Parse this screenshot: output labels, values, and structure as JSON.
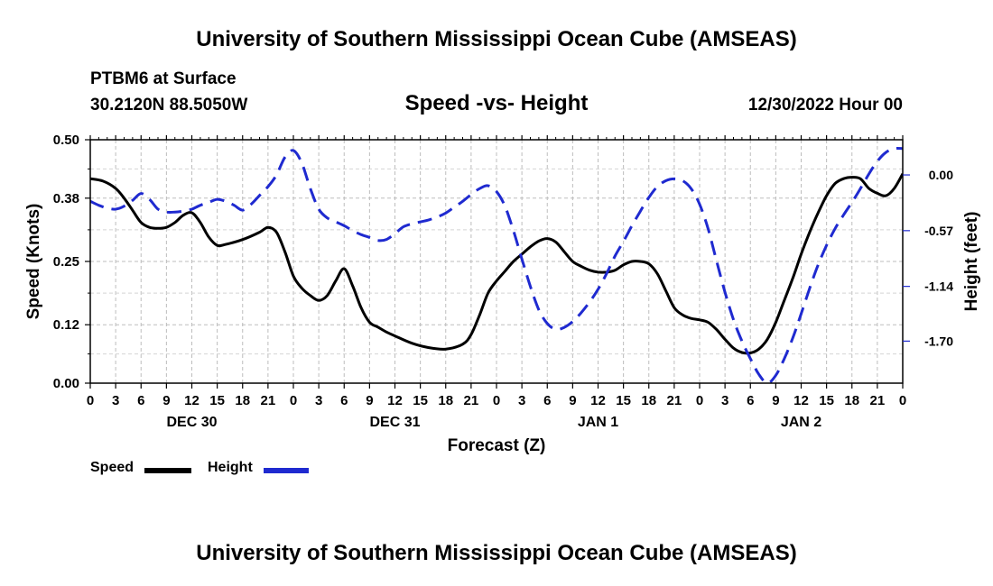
{
  "header": {
    "title": "University of Southern Mississippi Ocean Cube (AMSEAS)",
    "station": "PTBM6 at Surface",
    "coordinates": "30.2120N  88.5050W",
    "subtitle": "Speed -vs- Height",
    "datestamp": "12/30/2022 Hour 00"
  },
  "footer": {
    "title": "University of Southern Mississippi Ocean Cube (AMSEAS)"
  },
  "legend": {
    "speed_label": "Speed",
    "height_label": "Height",
    "speed_color": "#000000",
    "height_color": "#1f2ad0"
  },
  "chart_data": {
    "type": "line",
    "title": "Speed -vs- Height",
    "xlabel": "Forecast (Z)",
    "ylabel_left": "Speed (Knots)",
    "ylabel_right": "Height (feet)",
    "x_range_hours": [
      0,
      96
    ],
    "x_tick_labels": [
      "0",
      "3",
      "6",
      "9",
      "12",
      "15",
      "18",
      "21",
      "0",
      "3",
      "6",
      "9",
      "12",
      "15",
      "18",
      "21",
      "0",
      "3",
      "6",
      "9",
      "12",
      "15",
      "18",
      "21",
      "0",
      "3",
      "6",
      "9",
      "12",
      "15",
      "18",
      "21",
      "0"
    ],
    "day_labels": [
      {
        "label": "DEC 30",
        "hour": 12
      },
      {
        "label": "DEC 31",
        "hour": 36
      },
      {
        "label": "JAN 1",
        "hour": 60
      },
      {
        "label": "JAN 2",
        "hour": 84
      }
    ],
    "ylim_left": [
      0,
      0.5
    ],
    "y_ticks_left": [
      0.0,
      0.12,
      0.25,
      0.38,
      0.5
    ],
    "y_tick_labels_left": [
      "0.00",
      "0.12",
      "0.25",
      "0.38",
      "0.50"
    ],
    "ylim_right": [
      -2.13,
      0.36
    ],
    "y_ticks_right": [
      0.0,
      -0.57,
      -1.14,
      -1.7
    ],
    "y_tick_labels_right": [
      "0.00",
      "-0.57",
      "-1.14",
      "-1.70"
    ],
    "grid": true,
    "series": [
      {
        "name": "Speed",
        "axis": "left",
        "color": "#000000",
        "style": "solid",
        "x": [
          0,
          1.5,
          3,
          4,
          5,
          6,
          7,
          8,
          9,
          10,
          11,
          12,
          13,
          14,
          15,
          16,
          18,
          20,
          21,
          22,
          23,
          24,
          25,
          26,
          27,
          28,
          29,
          30,
          31,
          32,
          33,
          34,
          35,
          36,
          38,
          40,
          42,
          44,
          45,
          46,
          47,
          48,
          49,
          50,
          51,
          52,
          53,
          54,
          55,
          56,
          57,
          58,
          59,
          60,
          61,
          62,
          63,
          64,
          65,
          66,
          67,
          68,
          69,
          70,
          71,
          72,
          73,
          74,
          75,
          76,
          77,
          78,
          79,
          80,
          81,
          82,
          83,
          84,
          85,
          86,
          87,
          88,
          89,
          90,
          91,
          92,
          93,
          94,
          95,
          96
        ],
        "values": [
          0.42,
          0.415,
          0.4,
          0.38,
          0.355,
          0.33,
          0.32,
          0.318,
          0.32,
          0.33,
          0.345,
          0.35,
          0.33,
          0.3,
          0.283,
          0.285,
          0.295,
          0.31,
          0.32,
          0.31,
          0.27,
          0.22,
          0.195,
          0.18,
          0.17,
          0.18,
          0.21,
          0.235,
          0.2,
          0.155,
          0.125,
          0.115,
          0.105,
          0.097,
          0.082,
          0.073,
          0.07,
          0.08,
          0.1,
          0.14,
          0.185,
          0.21,
          0.23,
          0.25,
          0.265,
          0.28,
          0.292,
          0.297,
          0.29,
          0.27,
          0.25,
          0.24,
          0.232,
          0.228,
          0.228,
          0.232,
          0.243,
          0.25,
          0.25,
          0.245,
          0.225,
          0.19,
          0.155,
          0.14,
          0.133,
          0.13,
          0.125,
          0.11,
          0.09,
          0.072,
          0.063,
          0.062,
          0.07,
          0.09,
          0.125,
          0.17,
          0.215,
          0.265,
          0.31,
          0.35,
          0.385,
          0.41,
          0.42,
          0.423,
          0.42,
          0.4,
          0.39,
          0.385,
          0.4,
          0.43
        ]
      },
      {
        "name": "Height",
        "axis": "right",
        "color": "#1f2ad0",
        "style": "dashed",
        "x": [
          0,
          1,
          2,
          3,
          4,
          5,
          6,
          7,
          8,
          9,
          10,
          11,
          12,
          13,
          14,
          15,
          16,
          17,
          18,
          19,
          20,
          21,
          22,
          23,
          24,
          25,
          26,
          27,
          28,
          29,
          30,
          31,
          32,
          33,
          34,
          35,
          36,
          37,
          38,
          39,
          40,
          41,
          42,
          43,
          44,
          45,
          46,
          47,
          48,
          49,
          50,
          51,
          52,
          53,
          54,
          55,
          56,
          57,
          58,
          59,
          60,
          61,
          62,
          63,
          64,
          65,
          66,
          67,
          68,
          69,
          70,
          71,
          72,
          73,
          74,
          75,
          76,
          77,
          78,
          79,
          80,
          81,
          82,
          83,
          84,
          85,
          86,
          87,
          88,
          89,
          90,
          91,
          92,
          93,
          94,
          95,
          96
        ],
        "values": [
          -0.27,
          -0.31,
          -0.34,
          -0.35,
          -0.32,
          -0.26,
          -0.19,
          -0.25,
          -0.35,
          -0.38,
          -0.38,
          -0.37,
          -0.35,
          -0.31,
          -0.28,
          -0.25,
          -0.27,
          -0.31,
          -0.36,
          -0.3,
          -0.21,
          -0.12,
          0.0,
          0.18,
          0.25,
          0.12,
          -0.14,
          -0.35,
          -0.44,
          -0.48,
          -0.52,
          -0.57,
          -0.61,
          -0.64,
          -0.67,
          -0.66,
          -0.6,
          -0.53,
          -0.5,
          -0.48,
          -0.46,
          -0.43,
          -0.39,
          -0.33,
          -0.27,
          -0.2,
          -0.14,
          -0.11,
          -0.17,
          -0.32,
          -0.57,
          -0.86,
          -1.14,
          -1.38,
          -1.52,
          -1.58,
          -1.56,
          -1.5,
          -1.41,
          -1.3,
          -1.17,
          -1.01,
          -0.83,
          -0.68,
          -0.52,
          -0.37,
          -0.23,
          -0.12,
          -0.06,
          -0.04,
          -0.06,
          -0.14,
          -0.3,
          -0.55,
          -0.88,
          -1.2,
          -1.48,
          -1.7,
          -1.88,
          -2.04,
          -2.13,
          -2.05,
          -1.88,
          -1.67,
          -1.42,
          -1.16,
          -0.92,
          -0.72,
          -0.55,
          -0.41,
          -0.28,
          -0.14,
          0.01,
          0.14,
          0.23,
          0.27,
          0.27
        ]
      }
    ]
  }
}
